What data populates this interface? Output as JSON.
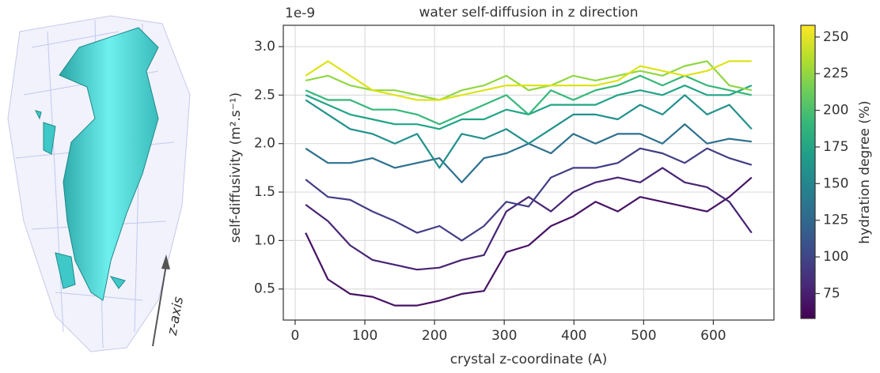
{
  "image_annotation": "z-axis",
  "chart_data": {
    "type": "line",
    "title": "water self-diffusion in z direction",
    "x_label": "crystal z-coordinate (A)",
    "y_label": "self-diffusivity (m².s⁻¹)",
    "y_offset_label": "1e-9",
    "x": [
      15,
      47,
      79,
      111,
      143,
      175,
      207,
      239,
      271,
      303,
      335,
      367,
      399,
      431,
      463,
      495,
      527,
      559,
      591,
      623,
      655
    ],
    "series": [
      {
        "color": "#471365",
        "values": [
          1.08,
          0.6,
          0.45,
          0.42,
          0.33,
          0.33,
          0.38,
          0.45,
          0.48,
          0.88,
          0.95,
          1.15,
          1.25,
          1.4,
          1.3,
          1.45,
          1.4,
          1.35,
          1.3,
          1.45,
          1.65
        ]
      },
      {
        "color": "#482475",
        "values": [
          1.37,
          1.2,
          0.95,
          0.8,
          0.75,
          0.7,
          0.72,
          0.8,
          0.85,
          1.3,
          1.45,
          1.3,
          1.5,
          1.6,
          1.65,
          1.6,
          1.75,
          1.6,
          1.55,
          1.4,
          1.08
        ]
      },
      {
        "color": "#433e85",
        "values": [
          1.63,
          1.45,
          1.42,
          1.3,
          1.2,
          1.08,
          1.15,
          1.0,
          1.15,
          1.4,
          1.35,
          1.65,
          1.75,
          1.75,
          1.8,
          1.95,
          1.9,
          1.8,
          1.95,
          1.85,
          1.78
        ]
      },
      {
        "color": "#2d708e",
        "values": [
          1.95,
          1.8,
          1.8,
          1.85,
          1.75,
          1.8,
          1.85,
          1.6,
          1.85,
          1.9,
          2.0,
          1.9,
          2.1,
          2.0,
          2.1,
          2.1,
          2.0,
          2.2,
          2.0,
          2.05,
          2.02
        ]
      },
      {
        "color": "#21918c",
        "values": [
          2.45,
          2.3,
          2.15,
          2.1,
          2.0,
          2.1,
          1.75,
          2.1,
          2.05,
          2.15,
          2.0,
          2.15,
          2.3,
          2.3,
          2.25,
          2.4,
          2.3,
          2.5,
          2.3,
          2.4,
          2.15
        ]
      },
      {
        "color": "#20a486",
        "values": [
          2.5,
          2.4,
          2.3,
          2.25,
          2.2,
          2.2,
          2.15,
          2.25,
          2.25,
          2.35,
          2.3,
          2.4,
          2.4,
          2.4,
          2.5,
          2.55,
          2.5,
          2.6,
          2.5,
          2.5,
          2.6
        ]
      },
      {
        "color": "#35b779",
        "values": [
          2.55,
          2.45,
          2.45,
          2.35,
          2.35,
          2.3,
          2.2,
          2.3,
          2.4,
          2.5,
          2.3,
          2.55,
          2.45,
          2.55,
          2.6,
          2.7,
          2.6,
          2.7,
          2.6,
          2.55,
          2.5
        ]
      },
      {
        "color": "#90d743",
        "values": [
          2.65,
          2.7,
          2.6,
          2.55,
          2.55,
          2.5,
          2.45,
          2.55,
          2.6,
          2.7,
          2.55,
          2.6,
          2.7,
          2.65,
          2.7,
          2.75,
          2.7,
          2.8,
          2.85,
          2.6,
          2.55
        ]
      },
      {
        "color": "#dde318",
        "values": [
          2.7,
          2.85,
          2.7,
          2.55,
          2.5,
          2.45,
          2.45,
          2.5,
          2.55,
          2.6,
          2.6,
          2.6,
          2.6,
          2.6,
          2.65,
          2.8,
          2.75,
          2.7,
          2.75,
          2.85,
          2.85
        ]
      }
    ],
    "xlim": [
      -17,
      687
    ],
    "xticks": [
      0,
      100,
      200,
      300,
      400,
      500,
      600
    ],
    "ylim": [
      0.18,
      3.22
    ],
    "yticks": [
      0.5,
      {
        "value": 1,
        "label": "1.0"
      },
      1.5,
      {
        "value": 2,
        "label": "2.0"
      },
      2.5,
      {
        "value": 3,
        "label": "3.0"
      }
    ],
    "grid": true,
    "colorbar": {
      "label": "hydration degree (%)",
      "clim": [
        58,
        258
      ],
      "ticks": [
        75,
        100,
        125,
        150,
        175,
        200,
        225,
        250
      ],
      "colors": [
        "#440154",
        "#482878",
        "#3e4989",
        "#31688e",
        "#26828e",
        "#1f9e89",
        "#35b779",
        "#6ece58",
        "#b5de2b",
        "#fde725"
      ]
    }
  }
}
